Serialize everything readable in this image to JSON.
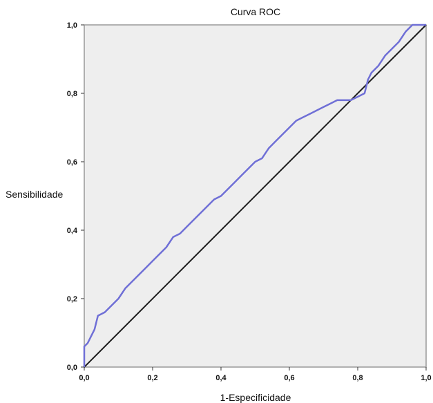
{
  "chart_data": {
    "type": "line",
    "title": "Curva ROC",
    "xlabel": "1-Especificidade",
    "ylabel": "Sensibilidade",
    "xlim": [
      0,
      1
    ],
    "ylim": [
      0,
      1
    ],
    "xticks": [
      "0,0",
      "0,2",
      "0,4",
      "0,6",
      "0,8",
      "1,0"
    ],
    "yticks": [
      "0,0",
      "0,2",
      "0,4",
      "0,6",
      "0,8",
      "1,0"
    ],
    "grid": false,
    "legend": "none",
    "colors": {
      "plot_background": "#eeeeee",
      "frame": "#999999",
      "roc_curve": "#6f6fd6",
      "reference_line": "#1a1a1a"
    },
    "series": [
      {
        "values": [
          [
            0.0,
            0.06
          ],
          [
            0.01,
            0.07
          ],
          [
            0.02,
            0.09
          ],
          [
            0.03,
            0.11
          ],
          [
            0.04,
            0.15
          ],
          [
            0.06,
            0.16
          ],
          [
            0.08,
            0.18
          ],
          [
            0.1,
            0.2
          ],
          [
            0.12,
            0.23
          ],
          [
            0.14,
            0.25
          ],
          [
            0.16,
            0.27
          ],
          [
            0.18,
            0.29
          ],
          [
            0.2,
            0.31
          ],
          [
            0.22,
            0.33
          ],
          [
            0.24,
            0.35
          ],
          [
            0.26,
            0.38
          ],
          [
            0.28,
            0.39
          ],
          [
            0.3,
            0.41
          ],
          [
            0.32,
            0.43
          ],
          [
            0.34,
            0.45
          ],
          [
            0.36,
            0.47
          ],
          [
            0.38,
            0.49
          ],
          [
            0.4,
            0.5
          ],
          [
            0.42,
            0.52
          ],
          [
            0.44,
            0.54
          ],
          [
            0.46,
            0.56
          ],
          [
            0.48,
            0.58
          ],
          [
            0.5,
            0.6
          ],
          [
            0.52,
            0.61
          ],
          [
            0.54,
            0.64
          ],
          [
            0.56,
            0.66
          ],
          [
            0.58,
            0.68
          ],
          [
            0.6,
            0.7
          ],
          [
            0.62,
            0.72
          ],
          [
            0.64,
            0.73
          ],
          [
            0.66,
            0.74
          ],
          [
            0.68,
            0.75
          ],
          [
            0.7,
            0.76
          ],
          [
            0.72,
            0.77
          ],
          [
            0.74,
            0.78
          ],
          [
            0.76,
            0.78
          ],
          [
            0.78,
            0.78
          ],
          [
            0.8,
            0.79
          ],
          [
            0.82,
            0.8
          ],
          [
            0.83,
            0.84
          ],
          [
            0.84,
            0.86
          ],
          [
            0.86,
            0.88
          ],
          [
            0.88,
            0.91
          ],
          [
            0.9,
            0.93
          ],
          [
            0.92,
            0.95
          ],
          [
            0.94,
            0.98
          ],
          [
            0.96,
            1.0
          ],
          [
            1.0,
            1.0
          ]
        ]
      },
      {
        "values": [
          [
            0,
            0
          ],
          [
            1,
            1
          ]
        ]
      }
    ]
  }
}
